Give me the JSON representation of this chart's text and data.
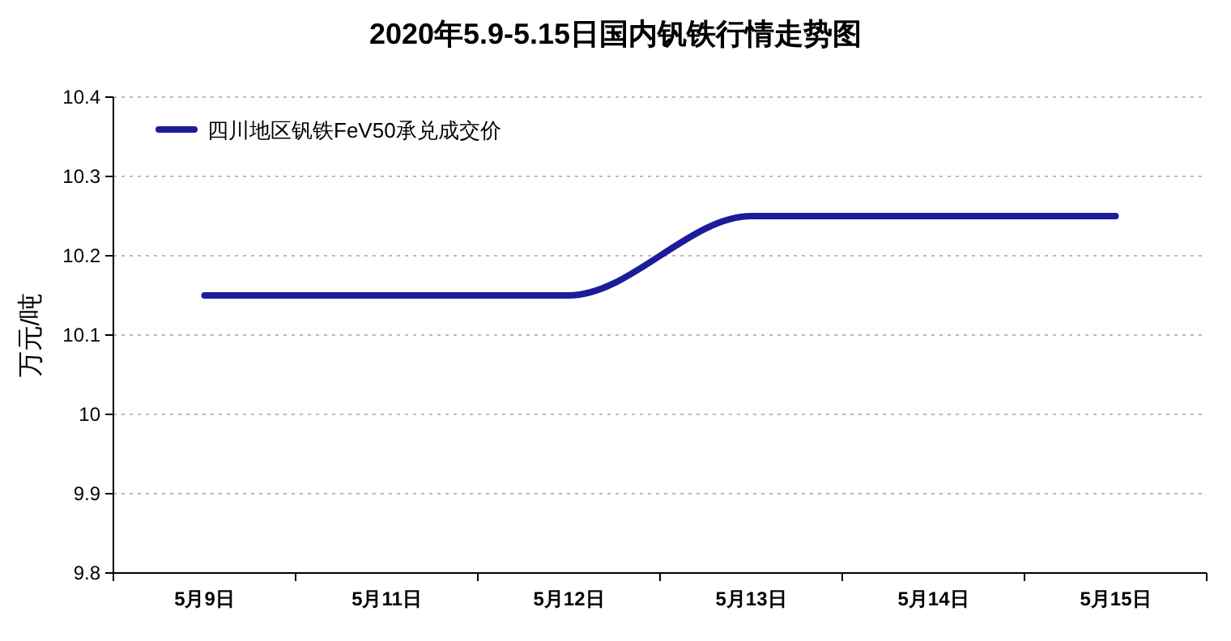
{
  "chart_data": {
    "type": "line",
    "title": "2020年5.9-5.15日国内钒铁行情走势图",
    "ylabel": "万元/吨",
    "categories": [
      "5月9日",
      "5月11日",
      "5月12日",
      "5月13日",
      "5月14日",
      "5月15日"
    ],
    "series": [
      {
        "name": "四川地区钒铁FeV50承兑成交价",
        "color": "#1c1c9a",
        "values": [
          10.15,
          10.15,
          10.15,
          10.25,
          10.25,
          10.25
        ]
      }
    ],
    "ylim": [
      9.8,
      10.4
    ],
    "yticks": [
      9.8,
      9.9,
      10,
      10.1,
      10.2,
      10.3,
      10.4
    ],
    "grid": "y",
    "legend": "top left",
    "marker": "none",
    "line_style": "solid"
  }
}
